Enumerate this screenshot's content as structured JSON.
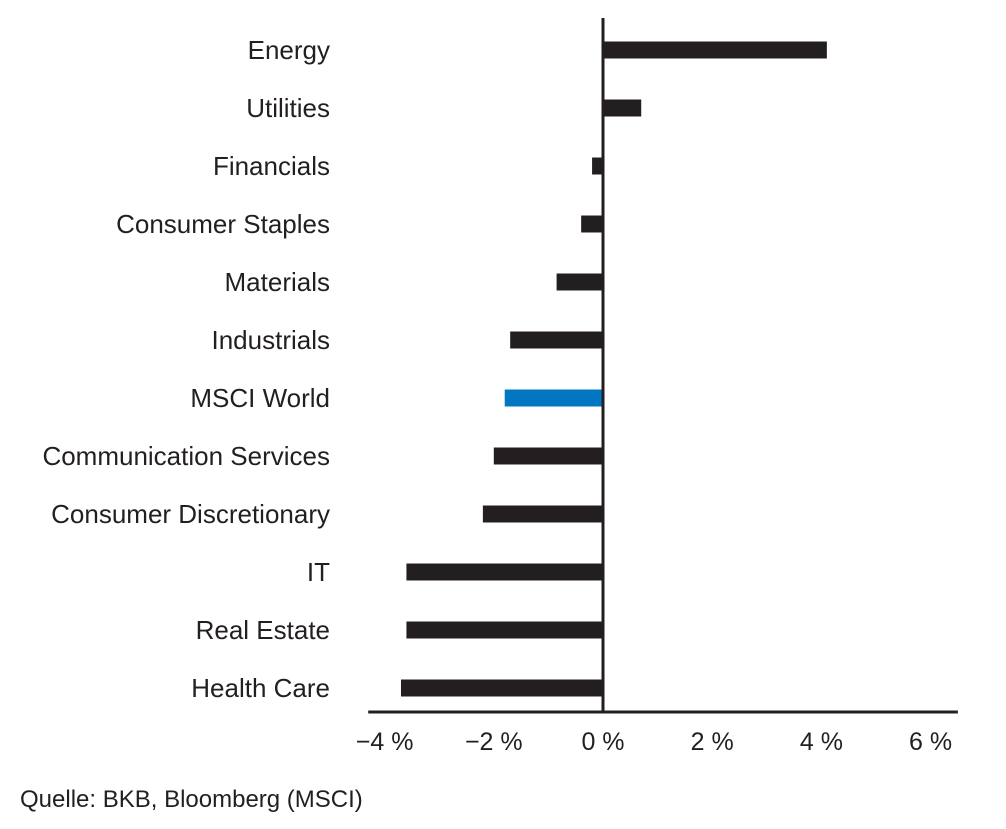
{
  "chart_data": {
    "type": "bar",
    "orientation": "horizontal",
    "categories": [
      "Energy",
      "Utilities",
      "Financials",
      "Consumer Staples",
      "Materials",
      "Industrials",
      "MSCI World",
      "Communication Services",
      "Consumer Discretionary",
      "IT",
      "Real Estate",
      "Health Care"
    ],
    "values": [
      4.1,
      0.7,
      -0.2,
      -0.4,
      -0.85,
      -1.7,
      -1.8,
      -2.0,
      -2.2,
      -3.6,
      -3.6,
      -3.7
    ],
    "highlight_category": "MSCI World",
    "bar_color": "#231f20",
    "highlight_color": "#0077c0",
    "xlim": [
      -4.3,
      6.5
    ],
    "x_ticks": [
      -4,
      -2,
      0,
      2,
      4,
      6
    ],
    "x_tick_labels": [
      "−4 %",
      "−2 %",
      "0 %",
      "2 %",
      "4 %",
      "6 %"
    ],
    "grid": false,
    "title": "",
    "xlabel": "",
    "ylabel": ""
  },
  "source": "Quelle: BKB, Bloomberg (MSCI)"
}
